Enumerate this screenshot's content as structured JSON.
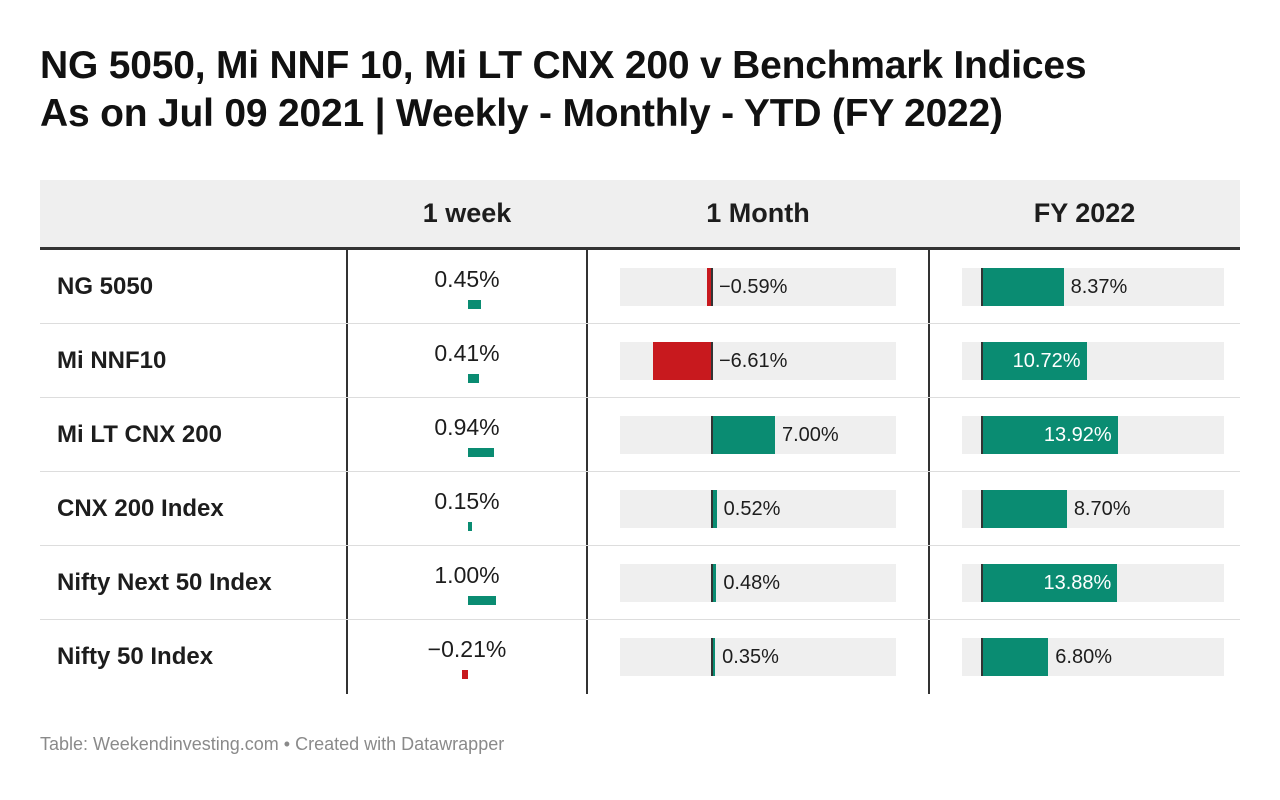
{
  "title": {
    "line1": "NG 5050, Mi NNF 10, Mi LT CNX 200 v Benchmark Indices",
    "line2": "As on Jul 09 2021  |  Weekly - Monthly - YTD (FY 2022)"
  },
  "footer": "Table: Weekendinvesting.com • Created with Datawrapper",
  "colors": {
    "positive": "#0a8c72",
    "negative": "#c8191e",
    "track": "#efefef"
  },
  "chart_data": {
    "type": "table",
    "columns": [
      "",
      "1 week",
      "1 Month",
      "FY 2022"
    ],
    "rows": [
      {
        "name": "NG 5050",
        "week": 0.45,
        "month": -0.59,
        "fy": 8.37,
        "week_label": "0.45%",
        "month_label": "−0.59%",
        "fy_label": "8.37%"
      },
      {
        "name": "Mi NNF10",
        "week": 0.41,
        "month": -6.61,
        "fy": 10.72,
        "week_label": "0.41%",
        "month_label": "−6.61%",
        "fy_label": "10.72%"
      },
      {
        "name": "Mi LT CNX 200",
        "week": 0.94,
        "month": 7.0,
        "fy": 13.92,
        "week_label": "0.94%",
        "month_label": "7.00%",
        "fy_label": "13.92%"
      },
      {
        "name": "CNX 200 Index",
        "week": 0.15,
        "month": 0.52,
        "fy": 8.7,
        "week_label": "0.15%",
        "month_label": "0.52%",
        "fy_label": "8.70%"
      },
      {
        "name": "Nifty Next 50 Index",
        "week": 1.0,
        "month": 0.48,
        "fy": 13.88,
        "week_label": "1.00%",
        "month_label": "0.48%",
        "fy_label": "13.88%"
      },
      {
        "name": "Nifty 50 Index",
        "week": -0.21,
        "month": 0.35,
        "fy": 6.8,
        "week_label": "−0.21%",
        "month_label": "0.35%",
        "fy_label": "6.80%"
      }
    ]
  }
}
